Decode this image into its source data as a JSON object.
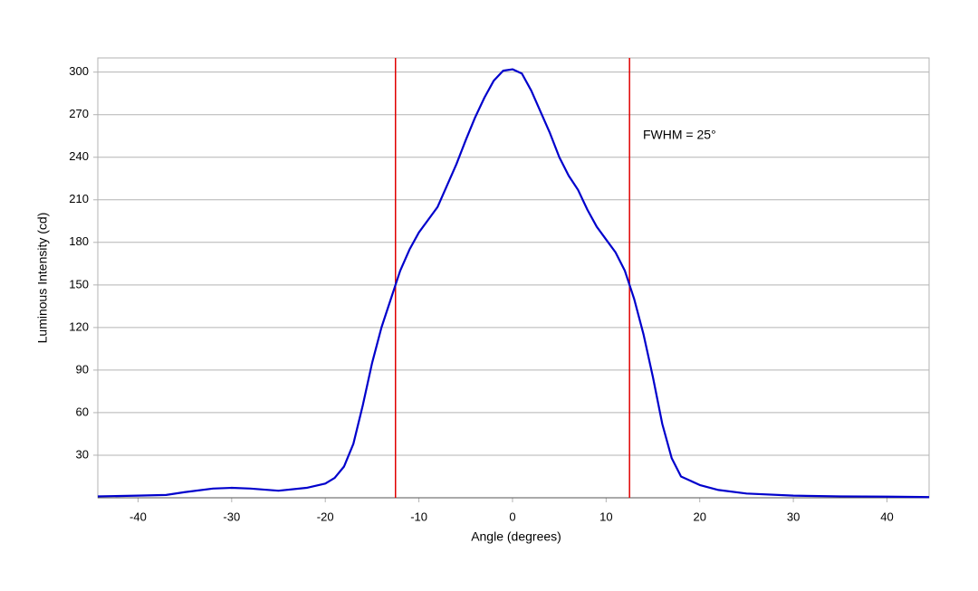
{
  "chart_data": {
    "type": "line",
    "xlabel": "Angle (degrees)",
    "ylabel": "Luminous Intensity (cd)",
    "annotation": "FWHM = 25°",
    "x": [
      -44.3,
      -40,
      -37,
      -35,
      -32,
      -30,
      -28,
      -25,
      -22,
      -20,
      -19,
      -18,
      -17,
      -16,
      -15,
      -14,
      -13,
      -12.5,
      -12,
      -11,
      -10,
      -9,
      -8,
      -7,
      -6,
      -5,
      -4,
      -3,
      -2,
      -1,
      0,
      1,
      2,
      3,
      4,
      5,
      6,
      7,
      8,
      9,
      10,
      11,
      12,
      12.5,
      13,
      14,
      15,
      16,
      17,
      18,
      20,
      22,
      25,
      30,
      35,
      40,
      44.5
    ],
    "values": [
      1,
      1.5,
      2,
      4,
      6.5,
      7,
      6.5,
      5,
      7,
      10,
      14,
      22,
      38,
      65,
      95,
      120,
      140,
      150,
      160,
      175,
      187,
      196,
      205,
      220,
      235,
      252,
      268,
      282,
      294,
      301,
      302,
      299,
      287,
      272,
      257,
      240,
      227,
      217,
      203,
      191,
      182,
      173,
      160,
      150,
      140,
      115,
      85,
      52,
      28,
      15,
      9,
      5.5,
      3,
      1.5,
      1,
      0.8,
      0.5
    ],
    "color": "#0000cc",
    "vlines": [
      -12.5,
      12.5
    ],
    "vline_color": "#e00000",
    "xlim": [
      -44.3,
      44.5
    ],
    "xticks": [
      -40,
      -30,
      -20,
      -10,
      0,
      10,
      20,
      30,
      40
    ],
    "ylim": [
      0,
      310
    ],
    "yticks": [
      30,
      60,
      90,
      120,
      150,
      180,
      210,
      240,
      270,
      300
    ],
    "grid": true
  }
}
